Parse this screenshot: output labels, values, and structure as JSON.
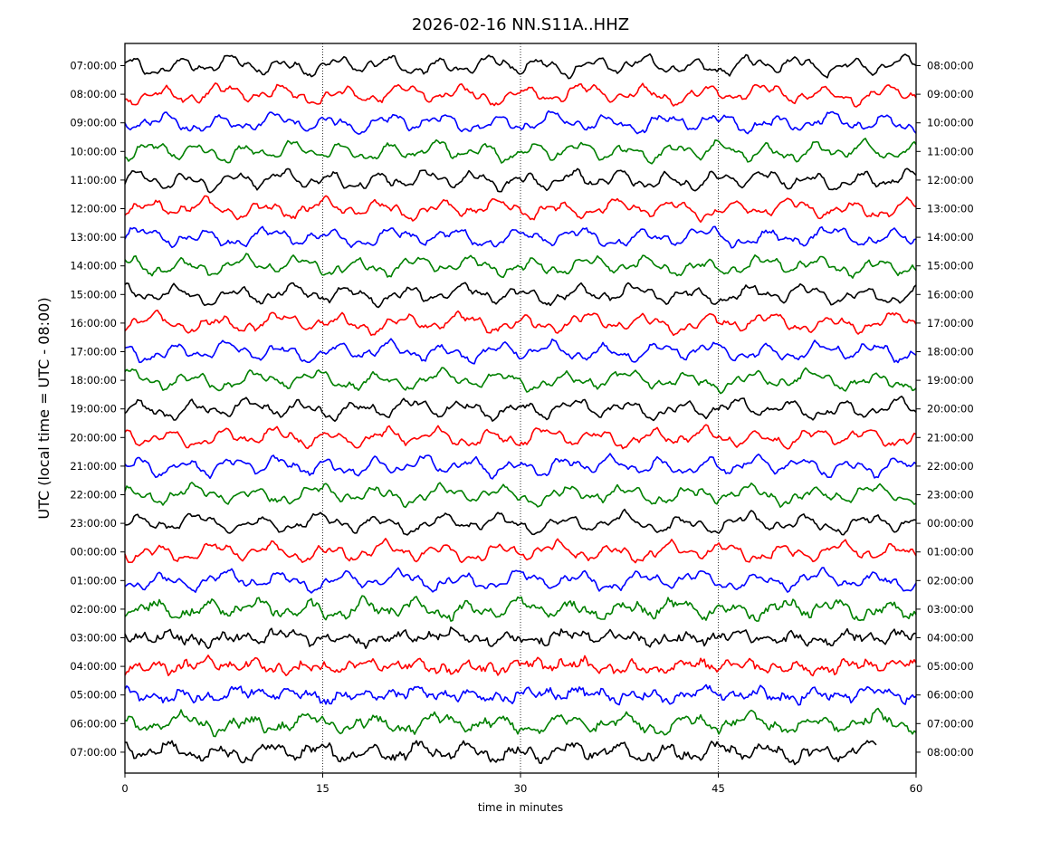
{
  "chart_data": {
    "type": "line",
    "title": "2026-02-16 NN.S11A..HHZ",
    "xlabel": "time in minutes",
    "ylabel": "UTC (local time = UTC - 08:00)",
    "xlim": [
      0,
      60
    ],
    "x_ticks": [
      0,
      15,
      30,
      45,
      60
    ],
    "x_tick_labels": [
      "0",
      "15",
      "30",
      "45",
      "60"
    ],
    "vertical_gridlines": [
      15,
      30,
      45
    ],
    "grid_style": "dotted",
    "colors": [
      "#000000",
      "#ff0000",
      "#0000ff",
      "#008000"
    ],
    "left_tick_labels": [
      "07:00:00",
      "08:00:00",
      "09:00:00",
      "10:00:00",
      "11:00:00",
      "12:00:00",
      "13:00:00",
      "14:00:00",
      "15:00:00",
      "16:00:00",
      "17:00:00",
      "18:00:00",
      "19:00:00",
      "20:00:00",
      "21:00:00",
      "22:00:00",
      "23:00:00",
      "00:00:00",
      "01:00:00",
      "02:00:00",
      "03:00:00",
      "04:00:00",
      "05:00:00",
      "06:00:00",
      "07:00:00"
    ],
    "right_tick_labels": [
      "08:00:00",
      "09:00:00",
      "10:00:00",
      "11:00:00",
      "12:00:00",
      "13:00:00",
      "14:00:00",
      "15:00:00",
      "16:00:00",
      "17:00:00",
      "18:00:00",
      "19:00:00",
      "20:00:00",
      "21:00:00",
      "22:00:00",
      "23:00:00",
      "00:00:00",
      "01:00:00",
      "02:00:00",
      "03:00:00",
      "04:00:00",
      "05:00:00",
      "06:00:00",
      "07:00:00",
      "08:00:00"
    ],
    "last_trace_end_minute": 57
  }
}
